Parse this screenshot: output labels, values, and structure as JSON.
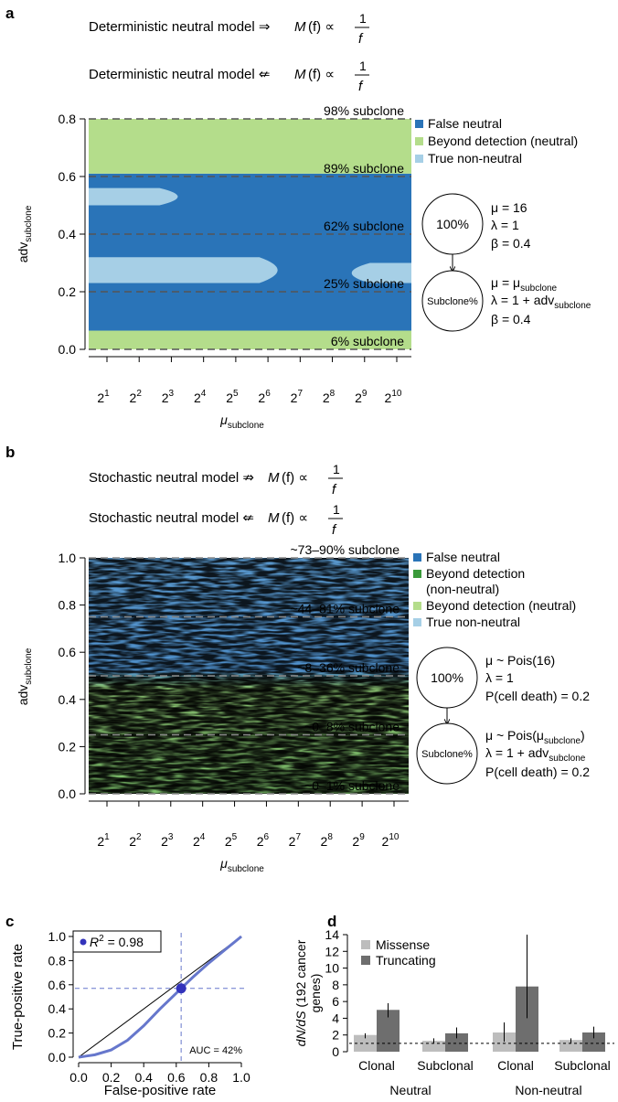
{
  "panel_a": {
    "label": "a",
    "claim1_text": "Deterministic neutral model ⇒",
    "claim2_text": "Deterministic neutral model ⇍",
    "model_formula_M": "M",
    "model_formula_f": "(f) ∝",
    "model_formula_num": "1",
    "model_formula_den": "f",
    "chart_data": {
      "type": "heatmap",
      "xlabel_base": "μ",
      "xlabel_sub": "subclone",
      "ylabel_base": "adv",
      "ylabel_sub": "subclone",
      "xticks": [
        {
          "base": "2",
          "exp": "1"
        },
        {
          "base": "2",
          "exp": "2"
        },
        {
          "base": "2",
          "exp": "3"
        },
        {
          "base": "2",
          "exp": "4"
        },
        {
          "base": "2",
          "exp": "5"
        },
        {
          "base": "2",
          "exp": "6"
        },
        {
          "base": "2",
          "exp": "7"
        },
        {
          "base": "2",
          "exp": "8"
        },
        {
          "base": "2",
          "exp": "9"
        },
        {
          "base": "2",
          "exp": "10"
        }
      ],
      "yticks": [
        "0.0",
        "0.2",
        "0.4",
        "0.6",
        "0.8"
      ],
      "ylim": [
        0,
        0.8
      ],
      "bands": [
        {
          "y0": 0.0,
          "y1": 0.065,
          "class": "Beyond detection (neutral)"
        },
        {
          "y0": 0.065,
          "y1": 0.61,
          "class": "False neutral"
        },
        {
          "y0": 0.61,
          "y1": 0.8,
          "class": "Beyond detection (neutral)"
        }
      ],
      "patches": [
        {
          "y0": 0.5,
          "y1": 0.56,
          "x_end_exp": 3.2,
          "class": "True non-neutral"
        },
        {
          "y0": 0.23,
          "y1": 0.32,
          "x_end_exp": 6.3,
          "class": "True non-neutral"
        },
        {
          "y0": 0.23,
          "y1": 0.3,
          "x_start_exp": 8.6,
          "class": "True non-neutral"
        }
      ],
      "reference_lines": [
        {
          "y": 0.0,
          "label": "6% subclone"
        },
        {
          "y": 0.2,
          "label": "25% subclone"
        },
        {
          "y": 0.4,
          "label": "62% subclone"
        },
        {
          "y": 0.6,
          "label": "89% subclone"
        },
        {
          "y": 0.8,
          "label": "98% subclone"
        }
      ],
      "legend": [
        {
          "label": "False neutral",
          "color": "#2a74b8"
        },
        {
          "label": "Beyond detection (neutral)",
          "color": "#b4dd8b"
        },
        {
          "label": "True non-neutral",
          "color": "#a6cfe6"
        }
      ],
      "legend_position": "right"
    },
    "diagram": {
      "node1": "100%",
      "node2": "Subclone%",
      "params1": [
        "μ = 16",
        "λ = 1",
        "β = 0.4"
      ],
      "params2_mu": "μ = μ",
      "params2_mu_sub": "subclone",
      "params2_lambda": "λ = 1 + adv",
      "params2_lambda_sub": "subclone",
      "params2_beta": "β = 0.4"
    }
  },
  "panel_b": {
    "label": "b",
    "claim1_text": "Stochastic neutral model ⇏",
    "claim2_text": "Stochastic neutral model ⇍",
    "chart_data": {
      "type": "heatmap",
      "xlabel_base": "μ",
      "xlabel_sub": "subclone",
      "ylabel_base": "adv",
      "ylabel_sub": "subclone",
      "yticks": [
        "0.0",
        "0.2",
        "0.4",
        "0.6",
        "0.8",
        "1.0"
      ],
      "ylim": [
        0,
        1.0
      ],
      "reference_lines": [
        {
          "y": 0.0,
          "label": "~0–1% subclone"
        },
        {
          "y": 0.25,
          "label": "~0–8% subclone"
        },
        {
          "y": 0.5,
          "label": "~8–36% subclone"
        },
        {
          "y": 0.75,
          "label": "~44–81% subclone"
        },
        {
          "y": 1.0,
          "label": "~73–90% subclone"
        }
      ],
      "legend": [
        {
          "label": "False neutral",
          "color": "#2a74b8"
        },
        {
          "label": "Beyond detection",
          "label2": "(non-neutral)",
          "color": "#3a9a3a"
        },
        {
          "label": "Beyond detection (neutral)",
          "color": "#b4dd8b"
        },
        {
          "label": "True non-neutral",
          "color": "#a6cfe6"
        }
      ],
      "legend_position": "right"
    },
    "diagram": {
      "node1": "100%",
      "node2": "Subclone%",
      "params1_mu": "μ ~ Pois(16)",
      "params1_lambda": "λ = 1",
      "params1_death": "P(cell death) = 0.2",
      "params2_mu": "μ ~ Pois(μ",
      "params2_mu_sub": "subclone",
      "params2_mu_close": ")",
      "params2_lambda": "λ = 1 + adv",
      "params2_lambda_sub": "subclone",
      "params2_death": "P(cell death) = 0.2"
    }
  },
  "panel_c": {
    "label": "c",
    "chart_data": {
      "type": "line",
      "xlabel": "False-positive rate",
      "ylabel": "True-positive rate",
      "xlim": [
        0,
        1
      ],
      "ylim": [
        0,
        1
      ],
      "xticks": [
        "0.0",
        "0.2",
        "0.4",
        "0.6",
        "0.8",
        "1.0"
      ],
      "yticks": [
        "0.0",
        "0.2",
        "0.4",
        "0.6",
        "0.8",
        "1.0"
      ],
      "legend_r2": "R",
      "legend_r2_exp": "2",
      "legend_r2_value": " = 0.98",
      "auc_label": "AUC = 42%",
      "roc_x": [
        0,
        0.05,
        0.1,
        0.2,
        0.3,
        0.4,
        0.5,
        0.6,
        0.63,
        0.7,
        0.8,
        0.9,
        1.0
      ],
      "roc_y": [
        0,
        0.01,
        0.02,
        0.06,
        0.14,
        0.26,
        0.4,
        0.53,
        0.57,
        0.66,
        0.78,
        0.89,
        1.0
      ],
      "point": {
        "x": 0.63,
        "y": 0.57
      },
      "series_color": "#6677cc",
      "point_color": "#3333bb"
    }
  },
  "panel_d": {
    "label": "d",
    "chart_data": {
      "type": "bar",
      "ylabel_italic": "dN/dS",
      "ylabel_rest": " (192 cancer",
      "ylabel_line2": "genes)",
      "ylim": [
        0,
        14
      ],
      "yticks": [
        "0",
        "2",
        "4",
        "6",
        "8",
        "10",
        "12",
        "14"
      ],
      "categories": [
        "Clonal",
        "Subclonal",
        "Clonal",
        "Subclonal"
      ],
      "groups": [
        "Neutral",
        "Non-neutral"
      ],
      "series": [
        {
          "name": "Missense",
          "color": "#bdbdbd",
          "values": [
            2.0,
            1.3,
            2.3,
            1.4
          ],
          "err_low": [
            1.6,
            1.0,
            1.2,
            1.0
          ],
          "err_high": [
            2.2,
            1.6,
            3.5,
            1.6
          ]
        },
        {
          "name": "Truncating",
          "color": "#6e6e6e",
          "values": [
            5.0,
            2.2,
            7.8,
            2.3
          ],
          "err_low": [
            4.1,
            1.6,
            4.0,
            1.6
          ],
          "err_high": [
            5.8,
            2.9,
            14.0,
            3.0
          ]
        }
      ],
      "reference_y": 1.0
    }
  }
}
